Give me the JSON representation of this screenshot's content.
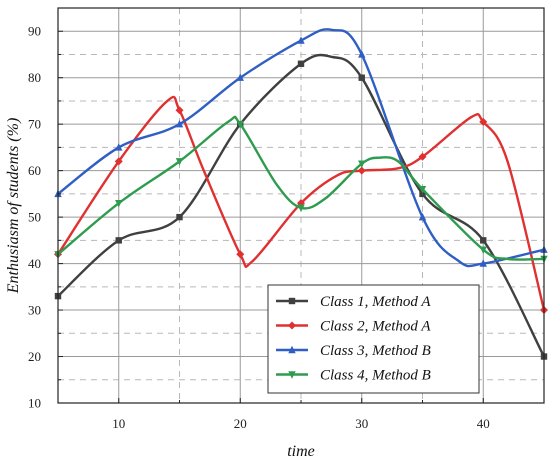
{
  "chart_data": {
    "type": "line",
    "xlabel": "time",
    "ylabel": "Enthusiasm of students (%)",
    "xlim": [
      5,
      45
    ],
    "ylim": [
      10,
      95
    ],
    "x_major_ticks": [
      10,
      20,
      30,
      40
    ],
    "y_major_ticks": [
      10,
      20,
      30,
      40,
      50,
      60,
      70,
      80,
      90
    ],
    "grid": true,
    "legend_position": "bottom-right",
    "series": [
      {
        "name": "Class 1, Method A",
        "color": "#404040",
        "marker": "square",
        "points": [
          [
            5,
            33
          ],
          [
            10,
            45
          ],
          [
            15,
            50
          ],
          [
            20,
            70
          ],
          [
            25,
            83
          ],
          [
            27.5,
            84.5
          ],
          [
            30,
            80
          ],
          [
            35,
            55
          ],
          [
            40,
            45
          ],
          [
            45,
            20
          ]
        ],
        "markers_x": [
          5,
          10,
          15,
          20,
          25,
          30,
          35,
          40,
          45
        ]
      },
      {
        "name": "Class 2, Method A",
        "color": "#e03030",
        "marker": "diamond",
        "points": [
          [
            5,
            42
          ],
          [
            10,
            62
          ],
          [
            14,
            75
          ],
          [
            15,
            73
          ],
          [
            17,
            60
          ],
          [
            20,
            42
          ],
          [
            21,
            40.5
          ],
          [
            25,
            53
          ],
          [
            28,
            59
          ],
          [
            30,
            60
          ],
          [
            33,
            60.5
          ],
          [
            35,
            63
          ],
          [
            39,
            71.5
          ],
          [
            40,
            70.5
          ],
          [
            42,
            62
          ],
          [
            45,
            30
          ]
        ],
        "markers_x": [
          5,
          10,
          15,
          20,
          25,
          30,
          35,
          40,
          45
        ]
      },
      {
        "name": "Class 3, Method B",
        "color": "#2f5ec4",
        "marker": "triangle-up",
        "points": [
          [
            5,
            55
          ],
          [
            10,
            65
          ],
          [
            15,
            70
          ],
          [
            20,
            80
          ],
          [
            25,
            88
          ],
          [
            27.5,
            90.3
          ],
          [
            30,
            85
          ],
          [
            35,
            50
          ],
          [
            38,
            40.5
          ],
          [
            40,
            40
          ],
          [
            45,
            43
          ]
        ],
        "markers_x": [
          5,
          10,
          15,
          20,
          25,
          30,
          35,
          40,
          45
        ]
      },
      {
        "name": "Class 4, Method B",
        "color": "#2e9c4e",
        "marker": "triangle-down",
        "points": [
          [
            5,
            42
          ],
          [
            10,
            53
          ],
          [
            15,
            62
          ],
          [
            19,
            70.5
          ],
          [
            20,
            70
          ],
          [
            23,
            57
          ],
          [
            25,
            52
          ],
          [
            27,
            54
          ],
          [
            30,
            61.5
          ],
          [
            31.5,
            62.8
          ],
          [
            33,
            62
          ],
          [
            35,
            56
          ],
          [
            40,
            43
          ],
          [
            42,
            41
          ],
          [
            45,
            41
          ]
        ],
        "markers_x": [
          5,
          10,
          15,
          20,
          25,
          30,
          35,
          40,
          45
        ]
      }
    ]
  }
}
